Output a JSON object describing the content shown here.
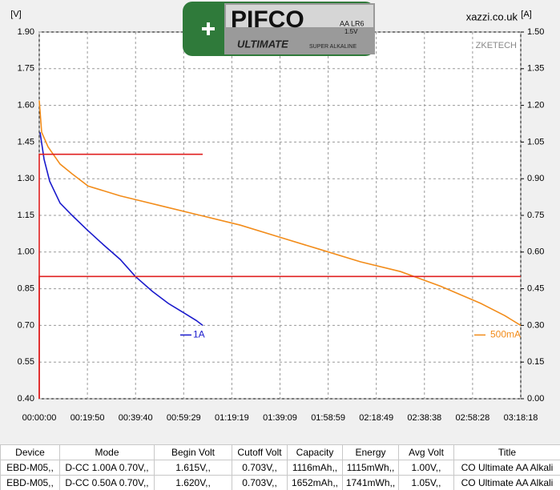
{
  "header": {
    "site": "xazzi.co.uk",
    "watermark": "ZKETECH",
    "battery_brand": "PIFCO",
    "battery_size": "AA LR6",
    "battery_voltage": "1.5V",
    "battery_line": "ULTIMATE",
    "battery_type": "SUPER ALKALINE"
  },
  "chart_data": {
    "type": "line",
    "ylabel": "[V]",
    "y2label": "[A]",
    "grid": true,
    "xlim": [
      0,
      11898
    ],
    "xticks": [
      {
        "value": 0,
        "label": "00:00:00"
      },
      {
        "value": 1190,
        "label": "00:19:50"
      },
      {
        "value": 2380,
        "label": "00:39:40"
      },
      {
        "value": 3569,
        "label": "00:59:29"
      },
      {
        "value": 4759,
        "label": "01:19:19"
      },
      {
        "value": 5949,
        "label": "01:39:09"
      },
      {
        "value": 7139,
        "label": "01:58:59"
      },
      {
        "value": 8329,
        "label": "02:18:49"
      },
      {
        "value": 9518,
        "label": "02:38:38"
      },
      {
        "value": 10708,
        "label": "02:58:28"
      },
      {
        "value": 11898,
        "label": "03:18:18"
      }
    ],
    "ylim": [
      0.4,
      1.9
    ],
    "yticks": [
      {
        "value": 0.4,
        "label": "0.40"
      },
      0.55,
      {
        "value": 0.7,
        "label": "0.70"
      },
      0.85,
      {
        "value": 1.0,
        "label": "1.00"
      },
      1.15,
      {
        "value": 1.3,
        "label": "1.30"
      },
      1.45,
      {
        "value": 1.6,
        "label": "1.60"
      },
      1.75,
      {
        "value": 1.9,
        "label": "1.90"
      }
    ],
    "y2lim": [
      0,
      1.5
    ],
    "y2ticks": [
      {
        "value": 0,
        "label": "0.00"
      },
      0.15,
      {
        "value": 0.3,
        "label": "0.30"
      },
      0.45,
      {
        "value": 0.6,
        "label": "0.60"
      },
      0.75,
      {
        "value": 0.9,
        "label": "0.90"
      },
      1.05,
      {
        "value": 1.2,
        "label": "1.20"
      },
      1.35,
      {
        "value": 1.5,
        "label": "1.50"
      }
    ],
    "series": [
      {
        "name": "1A",
        "color": "#1a1acc",
        "x": [
          20,
          119,
          257,
          515,
          812,
          1188,
          1584,
          1999,
          2376,
          2791,
          3187,
          3583,
          3880,
          4038
        ],
        "values": [
          1.49,
          1.38,
          1.29,
          1.2,
          1.15,
          1.09,
          1.03,
          0.97,
          0.9,
          0.84,
          0.79,
          0.75,
          0.72,
          0.7
        ]
      },
      {
        "name": "500mA",
        "color": "#f28c1a",
        "x": [
          0,
          59,
          218,
          515,
          812,
          1208,
          2000,
          2990,
          3979,
          4969,
          5959,
          6949,
          7938,
          8928,
          9918,
          10908,
          11502,
          11898
        ],
        "values": [
          1.62,
          1.49,
          1.43,
          1.36,
          1.32,
          1.27,
          1.23,
          1.19,
          1.15,
          1.11,
          1.06,
          1.01,
          0.96,
          0.92,
          0.86,
          0.79,
          0.74,
          0.7
        ]
      },
      {
        "color": "#e02020",
        "axis": "y2",
        "x": [
          0,
          0,
          4038
        ],
        "values": [
          0,
          1.0,
          1.0
        ]
      },
      {
        "color": "#e02020",
        "axis": "y2",
        "x": [
          0,
          0,
          11898
        ],
        "values": [
          0,
          0.5,
          0.5
        ]
      }
    ]
  },
  "table": {
    "columns": [
      "Device",
      "Mode",
      "Begin Volt",
      "Cutoff Volt",
      "Capacity",
      "Energy",
      "Avg Volt",
      "Title"
    ],
    "rows": [
      [
        "EBD-M05,,",
        "D-CC  1.00A  0.70V,,",
        "1.615V,,",
        "0.703V,,",
        "1116mAh,,",
        "1115mWh,,",
        "1.00V,,",
        "CO Ultimate AA Alkali"
      ],
      [
        "EBD-M05,,",
        "D-CC  0.50A  0.70V,,",
        "1.620V,,",
        "0.703V,,",
        "1652mAh,,",
        "1741mWh,,",
        "1.05V,,",
        "CO Ultimate AA Alkali"
      ]
    ]
  }
}
